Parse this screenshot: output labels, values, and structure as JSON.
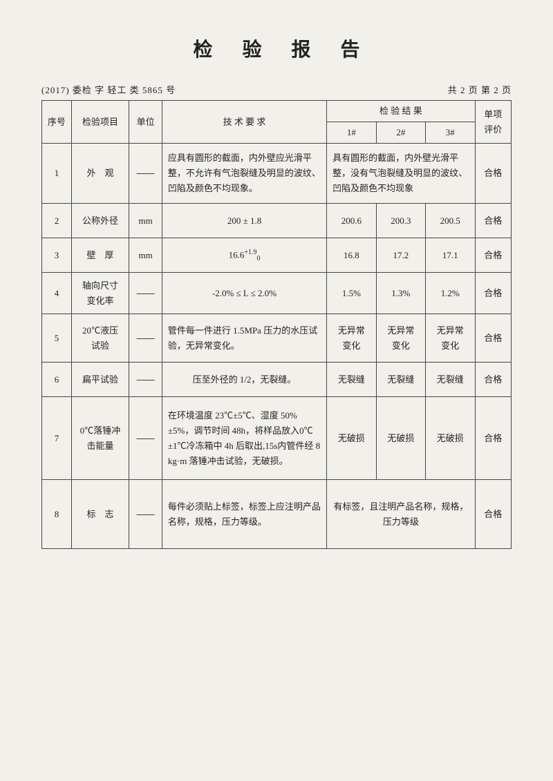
{
  "title": "检 验 报 告",
  "doc_number": "(2017)  委检 字 轻工 类 5865 号",
  "page_info": "共 2 页 第 2 页",
  "headers": {
    "seq": "序号",
    "item": "检验项目",
    "unit": "单位",
    "requirement": "技 术 要 求",
    "result_group": "检 验 结 果",
    "r1": "1#",
    "r2": "2#",
    "r3": "3#",
    "eval": "单项\n评价"
  },
  "rows": [
    {
      "seq": "1",
      "item": "外　观",
      "unit": "——",
      "req": "应具有圆形的截面，内外壁应光滑平整，不允许有气泡裂缝及明显的波纹、凹陷及颜色不均现象。",
      "result_merged": "具有圆形的截面，内外壁光滑平整，没有气泡裂缝及明显的波纹、凹陷及颜色不均现象",
      "eval": "合格",
      "height": "tall-80"
    },
    {
      "seq": "2",
      "item": "公称外径",
      "unit": "mm",
      "req": "200 ± 1.8",
      "r1": "200.6",
      "r2": "200.3",
      "r3": "200.5",
      "eval": "合格",
      "height": "tall-50"
    },
    {
      "seq": "3",
      "item": "壁　厚",
      "unit": "mm",
      "req_html": "16.6<span class=\"sup\">+1.9</span><span class=\"sub\">0</span>",
      "r1": "16.8",
      "r2": "17.2",
      "r3": "17.1",
      "eval": "合格",
      "height": "tall-50"
    },
    {
      "seq": "4",
      "item": "轴向尺寸\n变化率",
      "unit": "——",
      "req": "-2.0% ≤ L ≤ 2.0%",
      "r1": "1.5%",
      "r2": "1.3%",
      "r3": "1.2%",
      "eval": "合格",
      "height": "tall-60"
    },
    {
      "seq": "5",
      "item": "20℃液压\n试验",
      "unit": "——",
      "req": "管件每一件进行 1.5MPa 压力的水压试验，无异常变化。",
      "r1": "无异常\n变化",
      "r2": "无异常\n变化",
      "r3": "无异常\n变化",
      "eval": "合格",
      "height": "tall-70"
    },
    {
      "seq": "6",
      "item": "扁平试验",
      "unit": "——",
      "req": "压至外径的 1/2，无裂缝。",
      "r1": "无裂缝",
      "r2": "无裂缝",
      "r3": "无裂缝",
      "eval": "合格",
      "height": "tall-50"
    },
    {
      "seq": "7",
      "item": "0℃落锤冲\n击能量",
      "unit": "——",
      "req": "在环境温度 23℃±5℃、湿度 50%±5%，调节时间 48h，将样品放入0℃±1℃冷冻箱中 4h 后取出,15s内管件经 8 kg·m 落锤冲击试验，无破损。",
      "r1": "无破损",
      "r2": "无破损",
      "r3": "无破损",
      "eval": "合格",
      "height": "tall-120"
    },
    {
      "seq": "8",
      "item": "标　志",
      "unit": "——",
      "req": "每件必须贴上标签，标签上应注明产品名称，规格，压力等级。",
      "result_merged": "有标签，且注明产品名称，规格，\n压力等级",
      "eval": "合格",
      "height": "tall-100"
    }
  ],
  "colors": {
    "paper": "#f2f0eb",
    "text": "#222222",
    "border": "#444444",
    "stamp": "#d94a3a"
  }
}
